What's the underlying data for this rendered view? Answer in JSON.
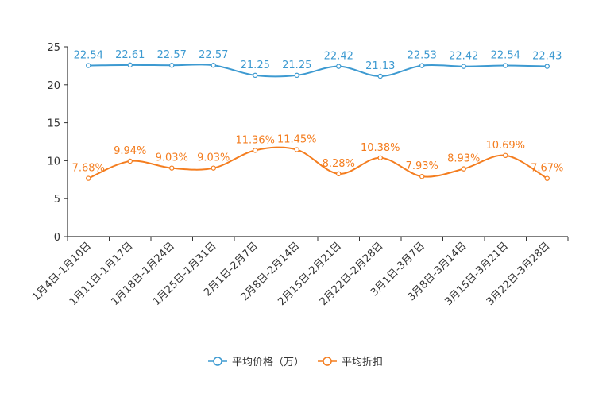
{
  "chart_data": {
    "type": "line",
    "categories": [
      "1月4日-1月10日",
      "1月11日-1月17日",
      "1月18日-1月24日",
      "1月25日-1月31日",
      "2月1日-2月7日",
      "2月8日-2月14日",
      "2月15日-2月21日",
      "2月22日-2月28日",
      "3月1日-3月7日",
      "3月8日-3月14日",
      "3月15日-3月21日",
      "3月22日-3月28日"
    ],
    "ylim": [
      0,
      25
    ],
    "yticks": [
      0,
      5,
      10,
      15,
      20,
      25
    ],
    "series": [
      {
        "name": "平均价格（万）",
        "color": "#3d9ad1",
        "values": [
          22.54,
          22.61,
          22.57,
          22.57,
          21.25,
          21.25,
          22.42,
          21.13,
          22.53,
          22.42,
          22.54,
          22.43
        ],
        "labels": [
          "22.54",
          "22.61",
          "22.57",
          "22.57",
          "21.25",
          "21.25",
          "22.42",
          "21.13",
          "22.53",
          "22.42",
          "22.54",
          "22.43"
        ]
      },
      {
        "name": "平均折扣",
        "color": "#f47d1f",
        "values": [
          7.68,
          9.94,
          9.03,
          9.03,
          11.36,
          11.45,
          8.28,
          10.38,
          7.93,
          8.93,
          10.69,
          7.67
        ],
        "labels": [
          "7.68%",
          "9.94%",
          "9.03%",
          "9.03%",
          "11.36%",
          "11.45%",
          "8.28%",
          "10.38%",
          "7.93%",
          "8.93%",
          "10.69%",
          "7.67%"
        ]
      }
    ],
    "legend_position": "bottom-center"
  }
}
